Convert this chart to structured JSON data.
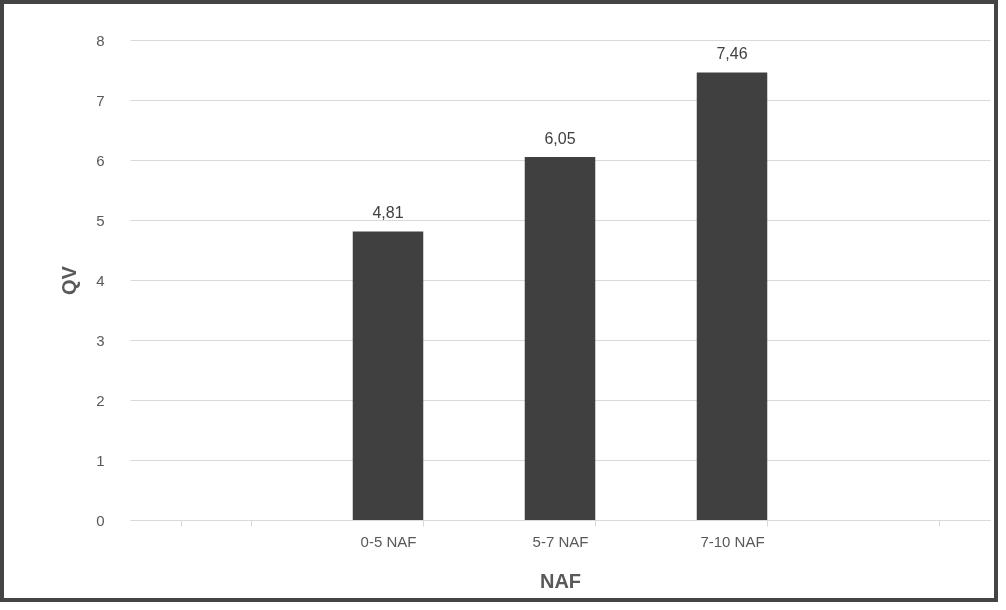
{
  "chart_data": {
    "type": "bar",
    "xlabel": "NAF",
    "ylabel": "QV",
    "categories": [
      null,
      "0-5 NAF",
      "5-7 NAF",
      "7-10 NAF",
      null
    ],
    "values": [
      null,
      4.81,
      6.05,
      7.46,
      null
    ],
    "value_labels": [
      null,
      "4,81",
      "6,05",
      "7,46",
      null
    ],
    "color": "#404040",
    "ylim": [
      0,
      8
    ],
    "yticks": [
      0,
      1,
      2,
      3,
      4,
      5,
      6,
      7,
      8
    ],
    "grid": "y"
  }
}
